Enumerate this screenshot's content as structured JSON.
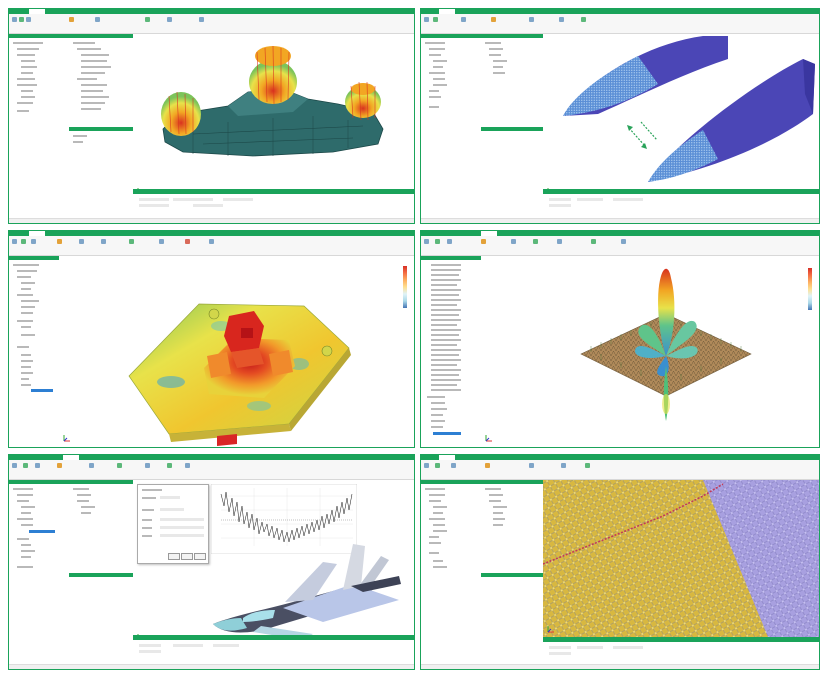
{
  "panels": [
    {
      "id": "p1",
      "tabs": [
        "",
        "",
        "",
        "",
        ""
      ],
      "scene": "car-heatmap"
    },
    {
      "id": "p2",
      "tabs": [
        "",
        "",
        "",
        "",
        ""
      ],
      "scene": "nose-cones"
    },
    {
      "id": "p3",
      "tabs": [
        "",
        "",
        "",
        "",
        ""
      ],
      "scene": "board-heatmap"
    },
    {
      "id": "p4",
      "tabs": [
        "",
        "",
        "",
        "",
        ""
      ],
      "scene": "radiation-pattern"
    },
    {
      "id": "p5",
      "tabs": [
        "",
        "",
        "",
        "",
        ""
      ],
      "scene": "aircraft-rcs"
    },
    {
      "id": "p6",
      "tabs": [
        "",
        "",
        "",
        "",
        ""
      ],
      "scene": "mesh-closeup"
    }
  ],
  "colors": {
    "accent": "#1aa35a",
    "selection": "#2d7fd3",
    "mesh_blue": "#4b46b6",
    "board_yellow": "#e8d23a",
    "car_teal": "#2e6b6b"
  },
  "icons": [
    "axis-triad-icon",
    "color-legend-icon",
    "ribbon-tool-icon"
  ]
}
